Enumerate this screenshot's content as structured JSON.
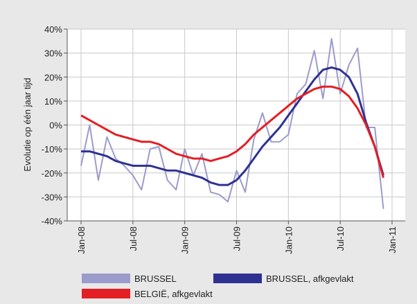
{
  "chart_data": {
    "type": "line",
    "y_label": "Evolutie op één jaar tijd",
    "x": [
      "2008-01",
      "2008-02",
      "2008-03",
      "2008-04",
      "2008-05",
      "2008-06",
      "2008-07",
      "2008-08",
      "2008-09",
      "2008-10",
      "2008-11",
      "2008-12",
      "2009-01",
      "2009-02",
      "2009-03",
      "2009-04",
      "2009-05",
      "2009-06",
      "2009-07",
      "2009-08",
      "2009-09",
      "2009-10",
      "2009-11",
      "2009-12",
      "2010-01",
      "2010-02",
      "2010-03",
      "2010-04",
      "2010-05",
      "2010-06",
      "2010-07",
      "2010-08",
      "2010-09",
      "2010-10",
      "2010-11",
      "2010-12"
    ],
    "series": [
      {
        "name": "BRUSSEL",
        "color": "#9b9bcc",
        "width": 2,
        "values": [
          -17,
          0,
          -23,
          -5,
          -14,
          -17,
          -21,
          -27,
          -10,
          -9,
          -23,
          -27,
          -10,
          -21,
          -12,
          -28,
          -29,
          -32,
          -19,
          -28,
          -6,
          5,
          -7,
          -7,
          -4,
          13,
          17,
          31,
          11,
          36,
          13,
          25,
          32,
          -1,
          -1,
          -35
        ]
      },
      {
        "name": "BRUSSEL, afkgevlakt",
        "color": "#2e3192",
        "width": 3,
        "values": [
          -11,
          -11,
          -12,
          -13,
          -15,
          -16,
          -17,
          -17,
          -17,
          -18,
          -19,
          -19,
          -20,
          -21,
          -22,
          -24,
          -25,
          -25,
          -23,
          -19,
          -14,
          -9,
          -5,
          -1,
          4,
          9,
          14,
          19,
          23,
          24,
          23,
          20,
          13,
          1,
          -9,
          -21
        ]
      },
      {
        "name": "BELGIË, afkgevlakt",
        "color": "#e31e24",
        "width": 3,
        "values": [
          4,
          2,
          0,
          -2,
          -4,
          -5,
          -6,
          -7,
          -7,
          -8,
          -10,
          -12,
          -13,
          -14,
          -14,
          -15,
          -14,
          -13,
          -11,
          -8,
          -4,
          -1,
          2,
          5,
          8,
          11,
          13,
          15,
          16,
          16,
          15,
          12,
          7,
          0,
          -9,
          -22
        ]
      }
    ],
    "xlim": [
      "2008-01",
      "2011-01"
    ],
    "xticks": [
      {
        "value": "2008-01",
        "label": "Jan-08"
      },
      {
        "value": "2008-07",
        "label": "Jul-08"
      },
      {
        "value": "2009-01",
        "label": "Jan-09"
      },
      {
        "value": "2009-07",
        "label": "Jul-09"
      },
      {
        "value": "2010-01",
        "label": "Jan-10"
      },
      {
        "value": "2010-07",
        "label": "Jul-10"
      },
      {
        "value": "2011-01",
        "label": "Jan-11"
      }
    ],
    "ylim": [
      -40,
      40
    ],
    "yticks": [
      {
        "value": -40,
        "label": "-40%"
      },
      {
        "value": -30,
        "label": "-30%"
      },
      {
        "value": -20,
        "label": "-20%"
      },
      {
        "value": -10,
        "label": "-10%"
      },
      {
        "value": 0,
        "label": "0%"
      },
      {
        "value": 10,
        "label": "10%"
      },
      {
        "value": 20,
        "label": "20%"
      },
      {
        "value": 30,
        "label": "30%"
      },
      {
        "value": 40,
        "label": "40%"
      }
    ],
    "grid": true
  }
}
